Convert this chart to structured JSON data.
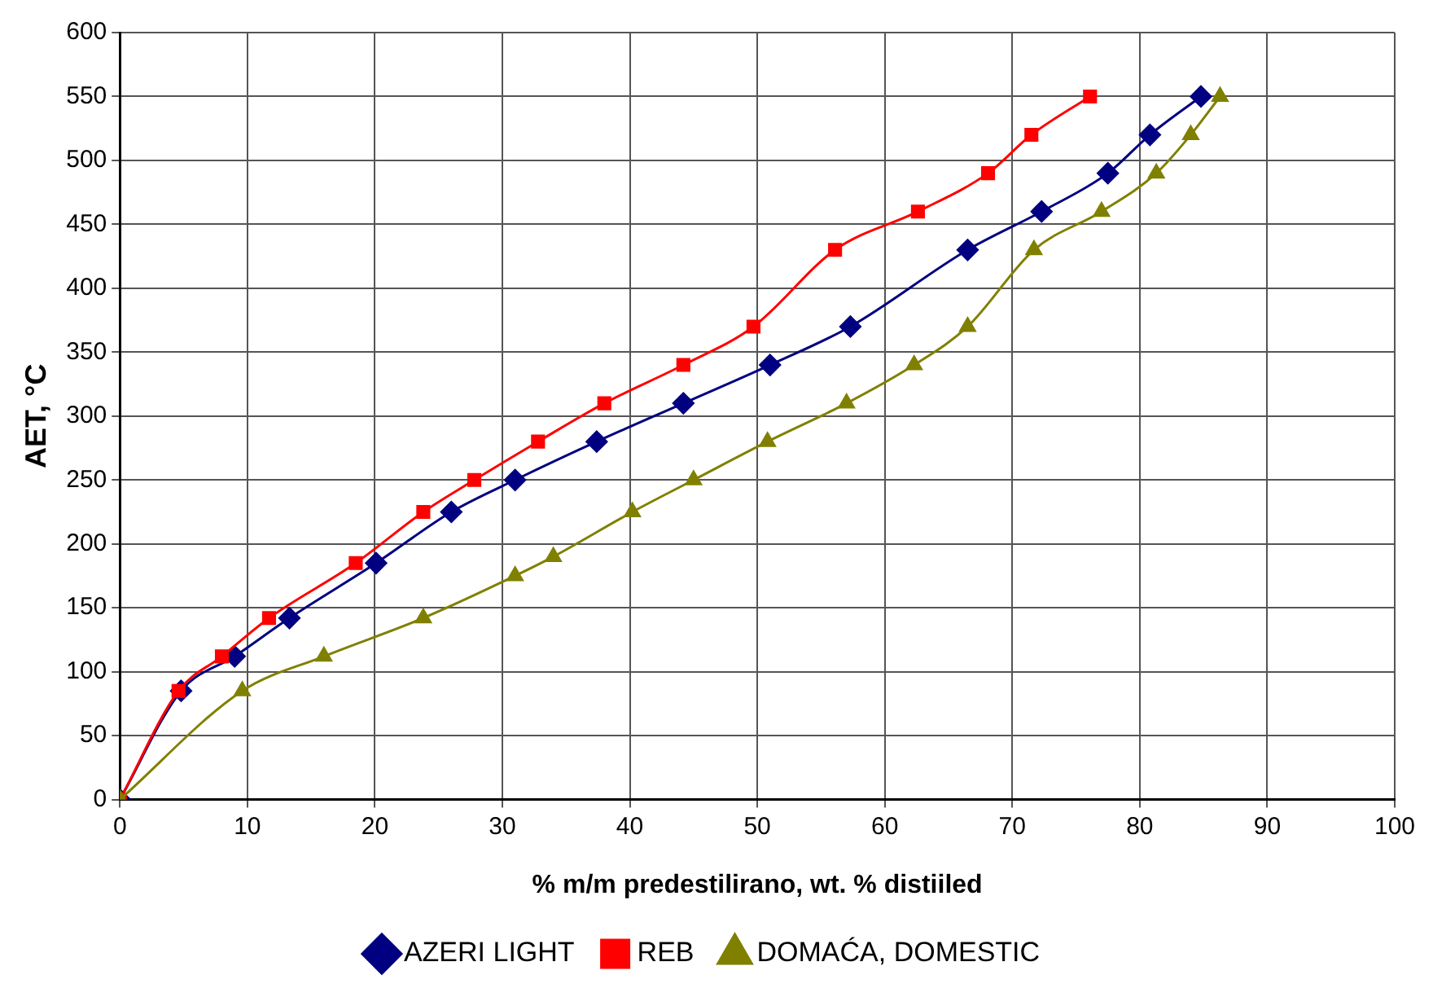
{
  "chart_data": {
    "type": "line",
    "xlabel": "% m/m predestilirano, wt. % distiiled",
    "ylabel": "AET, °C",
    "xlim": [
      0,
      100
    ],
    "xticks": [
      0,
      10,
      20,
      30,
      40,
      50,
      60,
      70,
      80,
      90,
      100
    ],
    "ylim": [
      0,
      600
    ],
    "yticks": [
      0,
      50,
      100,
      150,
      200,
      250,
      300,
      350,
      400,
      450,
      500,
      550,
      600
    ],
    "grid": true,
    "legend": "bottom",
    "line_style": "solid",
    "series": [
      {
        "name": "AZERI LIGHT",
        "color": "#000080",
        "marker": "diamond",
        "x": [
          0,
          4.8,
          9,
          13.3,
          20.1,
          26,
          31,
          37.4,
          44.2,
          51,
          57.3,
          66.5,
          72.3,
          77.5,
          80.8,
          84.8
        ],
        "values": [
          0,
          85,
          112,
          142,
          185,
          225,
          250,
          280,
          310,
          340,
          370,
          430,
          460,
          490,
          520,
          550
        ]
      },
      {
        "name": "REB",
        "color": "#ff0000",
        "marker": "square",
        "x": [
          0,
          4.6,
          8,
          11.7,
          18.5,
          23.8,
          27.8,
          32.8,
          38,
          44.2,
          49.7,
          56.1,
          62.6,
          68.1,
          71.5,
          76.1
        ],
        "values": [
          0,
          85,
          112,
          142,
          185,
          225,
          250,
          280,
          310,
          340,
          370,
          430,
          460,
          490,
          520,
          550
        ]
      },
      {
        "name": "DOMAĆA, DOMESTIC",
        "color": "#808000",
        "marker": "triangle",
        "x": [
          0,
          9.6,
          16,
          23.8,
          31,
          34,
          40.2,
          45,
          50.8,
          57,
          62.3,
          66.5,
          71.7,
          77,
          81.3,
          84,
          86.3
        ],
        "values": [
          0,
          85,
          112,
          142,
          175,
          190,
          225,
          250,
          280,
          310,
          340,
          370,
          430,
          460,
          490,
          520,
          550
        ]
      }
    ]
  }
}
